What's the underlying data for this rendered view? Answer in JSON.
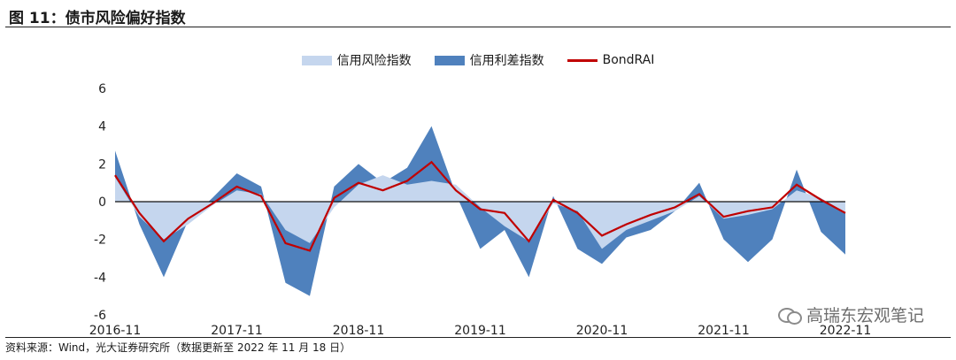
{
  "figure_title": "图 11：债市风险偏好指数",
  "source_note": "资料来源：Wind，光大证券研究所（数据更新至 2022 年 11 月 18 日）",
  "watermark": "高瑞东宏观笔记",
  "colors": {
    "light_fill": "#c5d6ee",
    "dark_fill": "#4f81bd",
    "line": "#c00000"
  },
  "chart_data": {
    "type": "area",
    "title": "债市风险偏好指数",
    "xlabel": "",
    "ylabel": "",
    "ylim": [
      -6,
      6
    ],
    "yticks": [
      6,
      4,
      2,
      0,
      -2,
      -4,
      -6
    ],
    "xtick_labels": [
      "2016-11",
      "2017-11",
      "2018-11",
      "2019-11",
      "2020-11",
      "2021-11",
      "2022-11"
    ],
    "legend": [
      "信用风险指数",
      "信用利差指数",
      "BondRAI"
    ],
    "legend_position": "top-center",
    "x": [
      0,
      0.2,
      0.4,
      0.6,
      0.8,
      1.0,
      1.2,
      1.4,
      1.6,
      1.8,
      2.0,
      2.2,
      2.4,
      2.6,
      2.8,
      3.0,
      3.2,
      3.4,
      3.6,
      3.8,
      4.0,
      4.2,
      4.4,
      4.6,
      4.8,
      5.0,
      5.2,
      5.4,
      5.6,
      5.8,
      6.0
    ],
    "series": [
      {
        "name": "信用风险指数",
        "values": [
          1.3,
          -0.8,
          -2.0,
          -1.2,
          -0.2,
          0.6,
          0.4,
          -1.5,
          -2.2,
          -0.3,
          0.9,
          1.4,
          0.9,
          1.1,
          0.9,
          -0.3,
          -1.3,
          -2.1,
          -0.1,
          -0.5,
          -2.5,
          -1.5,
          -1.0,
          -0.5,
          0.3,
          -0.9,
          -0.7,
          -0.4,
          0.6,
          0.2,
          -0.6
        ]
      },
      {
        "name": "信用利差指数",
        "values": [
          2.7,
          -1.2,
          -4.0,
          -1.0,
          0.2,
          1.5,
          0.8,
          -4.3,
          -5.0,
          0.8,
          2.0,
          1.0,
          1.8,
          4.0,
          0.4,
          -2.5,
          -1.5,
          -4.0,
          0.3,
          -2.5,
          -3.3,
          -1.9,
          -1.5,
          -0.5,
          1.0,
          -2.0,
          -3.2,
          -2.0,
          1.7,
          -1.6,
          -2.8
        ]
      },
      {
        "name": "BondRAI",
        "values": [
          1.4,
          -0.6,
          -2.1,
          -0.9,
          -0.1,
          0.8,
          0.3,
          -2.2,
          -2.6,
          0.2,
          1.0,
          0.6,
          1.1,
          2.1,
          0.6,
          -0.4,
          -0.6,
          -2.1,
          0.1,
          -0.6,
          -1.8,
          -1.2,
          -0.7,
          -0.3,
          0.4,
          -0.8,
          -0.5,
          -0.3,
          0.9,
          0.1,
          -0.6
        ]
      }
    ]
  }
}
